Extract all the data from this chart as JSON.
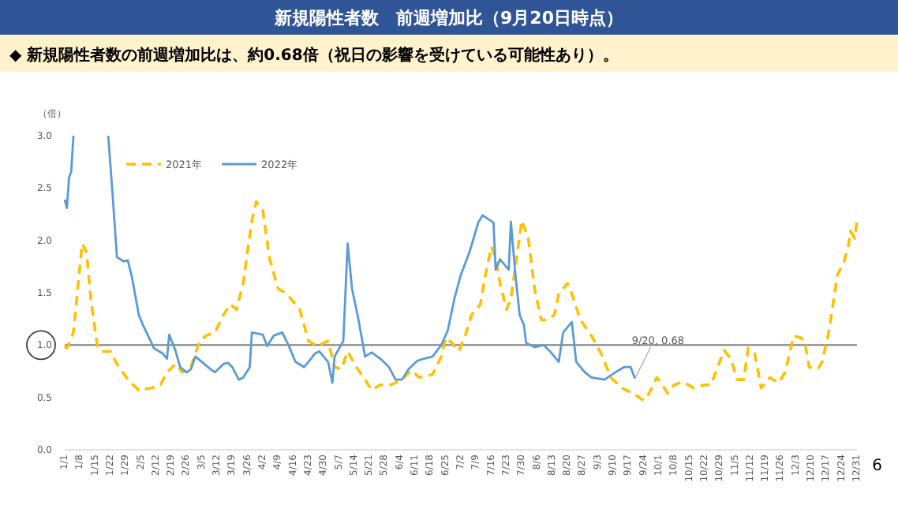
{
  "chart_data": {
    "type": "line",
    "title": "新規陽性者数　前週増加比（9月20日時点）",
    "subtitle": "◆  新規陽性者数の前週増加比は、約0.68倍（祝日の影響を受けている可能性あり）。",
    "ylabel": "（倍）",
    "annotations": [
      {
        "text": "9/20, 0.68",
        "x": "--09-20",
        "y": 0.68
      },
      "6"
    ],
    "legend": "top left",
    "xlim": [
      "--01-01",
      "--12-31"
    ],
    "ylim": [
      0,
      3
    ],
    "yticks": [
      {
        "value": 0,
        "label": "0.0"
      },
      {
        "value": 0.5,
        "label": "0.5"
      },
      {
        "value": 1,
        "label": "1.0"
      },
      {
        "value": 1.5,
        "label": "1.5"
      },
      {
        "value": 2,
        "label": "2.0"
      },
      {
        "value": 2.5,
        "label": "2.5"
      },
      {
        "value": 3,
        "label": "3.0"
      }
    ],
    "xticks": [
      {
        "value": "--01-01",
        "label": "1/1"
      },
      {
        "value": "--01-08",
        "label": "1/8"
      },
      {
        "value": "--01-15",
        "label": "1/15"
      },
      {
        "value": "--01-22",
        "label": "1/22"
      },
      {
        "value": "--01-29",
        "label": "1/29"
      },
      {
        "value": "--02-05",
        "label": "2/5"
      },
      {
        "value": "--02-12",
        "label": "2/12"
      },
      {
        "value": "--02-19",
        "label": "2/19"
      },
      {
        "value": "--02-26",
        "label": "2/26"
      },
      {
        "value": "--03-05",
        "label": "3/5"
      },
      {
        "value": "--03-12",
        "label": "3/12"
      },
      {
        "value": "--03-19",
        "label": "3/19"
      },
      {
        "value": "--03-26",
        "label": "3/26"
      },
      {
        "value": "--04-02",
        "label": "4/2"
      },
      {
        "value": "--04-09",
        "label": "4/9"
      },
      {
        "value": "--04-16",
        "label": "4/16"
      },
      {
        "value": "--04-23",
        "label": "4/23"
      },
      {
        "value": "--04-30",
        "label": "4/30"
      },
      {
        "value": "--05-07",
        "label": "5/7"
      },
      {
        "value": "--05-14",
        "label": "5/14"
      },
      {
        "value": "--05-21",
        "label": "5/21"
      },
      {
        "value": "--05-28",
        "label": "5/28"
      },
      {
        "value": "--06-04",
        "label": "6/4"
      },
      {
        "value": "--06-11",
        "label": "6/11"
      },
      {
        "value": "--06-18",
        "label": "6/18"
      },
      {
        "value": "--06-25",
        "label": "6/25"
      },
      {
        "value": "--07-02",
        "label": "7/2"
      },
      {
        "value": "--07-09",
        "label": "7/9"
      },
      {
        "value": "--07-16",
        "label": "7/16"
      },
      {
        "value": "--07-23",
        "label": "7/23"
      },
      {
        "value": "--07-30",
        "label": "7/30"
      },
      {
        "value": "--08-06",
        "label": "8/6"
      },
      {
        "value": "--08-13",
        "label": "8/13"
      },
      {
        "value": "--08-20",
        "label": "8/20"
      },
      {
        "value": "--08-27",
        "label": "8/27"
      },
      {
        "value": "--09-03",
        "label": "9/3"
      },
      {
        "value": "--09-10",
        "label": "9/10"
      },
      {
        "value": "--09-17",
        "label": "9/17"
      },
      {
        "value": "--09-24",
        "label": "9/24"
      },
      {
        "value": "--10-01",
        "label": "10/1"
      },
      {
        "value": "--10-08",
        "label": "10/8"
      },
      {
        "value": "--10-15",
        "label": "10/15"
      },
      {
        "value": "--10-22",
        "label": "10/22"
      },
      {
        "value": "--10-29",
        "label": "10/29"
      },
      {
        "value": "--11-05",
        "label": "11/5"
      },
      {
        "value": "--11-12",
        "label": "11/12"
      },
      {
        "value": "--11-19",
        "label": "11/19"
      },
      {
        "value": "--11-26",
        "label": "11/26"
      },
      {
        "value": "--12-03",
        "label": "12/3"
      },
      {
        "value": "--12-10",
        "label": "12/10"
      },
      {
        "value": "--12-17",
        "label": "12/17"
      },
      {
        "value": "--12-24",
        "label": "12/24"
      },
      {
        "value": "--12-31",
        "label": "12/31"
      }
    ],
    "ref_lines": [
      {
        "axis": "y",
        "value": 1,
        "color": "#808080"
      }
    ],
    "series": [
      {
        "name": "2021年",
        "color": "#ffc000",
        "line_style": "dashed",
        "x": [
          "--01-01",
          "--01-02",
          "--01-05",
          "--01-07",
          "--01-09",
          "--01-11",
          "--01-13",
          "--01-16",
          "--01-18",
          "--01-22",
          "--01-25",
          "--01-30",
          "--02-04",
          "--02-10",
          "--02-14",
          "--02-17",
          "--02-21",
          "--02-24",
          "--02-28",
          "--03-04",
          "--03-07",
          "--03-11",
          "--03-15",
          "--03-18",
          "--03-21",
          "--03-24",
          "--03-28",
          "--03-30",
          "--04-02",
          "--04-05",
          "--04-09",
          "--04-13",
          "--04-19",
          "--04-23",
          "--04-27",
          "--05-02",
          "--05-05",
          "--05-08",
          "--05-11",
          "--05-15",
          "--05-19",
          "--05-22",
          "--05-26",
          "--05-31",
          "--06-05",
          "--06-09",
          "--06-13",
          "--06-19",
          "--06-23",
          "--06-25",
          "--06-28",
          "--07-01",
          "--07-04",
          "--07-07",
          "--07-11",
          "--07-13",
          "--07-16",
          "--07-18",
          "--07-20",
          "--07-23",
          "--07-25",
          "--07-28",
          "--07-30",
          "--08-02",
          "--08-05",
          "--08-08",
          "--08-11",
          "--08-14",
          "--08-16",
          "--08-20",
          "--08-22",
          "--08-26",
          "--08-31",
          "--09-04",
          "--09-09",
          "--09-14",
          "--09-19",
          "--09-24",
          "--09-26",
          "--09-30",
          "--10-02",
          "--10-05",
          "--10-08",
          "--10-12",
          "--10-17",
          "--10-22",
          "--10-25",
          "--10-28",
          "--10-31",
          "--11-03",
          "--11-06",
          "--11-09",
          "--11-11",
          "--11-14",
          "--11-17",
          "--11-21",
          "--11-25",
          "--11-28",
          "--12-02",
          "--12-05",
          "--12-07",
          "--12-09",
          "--12-13",
          "--12-15",
          "--12-18",
          "--12-20",
          "--12-22",
          "--12-25",
          "--12-27",
          "--12-28",
          "--12-30",
          "--12-31"
        ],
        "values": [
          0.99,
          0.97,
          1.12,
          1.54,
          1.97,
          1.89,
          1.44,
          0.99,
          0.94,
          0.94,
          0.82,
          0.67,
          0.57,
          0.59,
          0.62,
          0.74,
          0.82,
          0.74,
          0.79,
          1.04,
          1.09,
          1.12,
          1.29,
          1.39,
          1.34,
          1.59,
          2.19,
          2.37,
          2.29,
          1.84,
          1.54,
          1.49,
          1.34,
          1.04,
          0.99,
          1.04,
          0.79,
          0.77,
          0.94,
          0.79,
          0.67,
          0.57,
          0.62,
          0.62,
          0.67,
          0.76,
          0.69,
          0.72,
          0.89,
          1.07,
          1.02,
          0.94,
          1.09,
          1.29,
          1.39,
          1.64,
          1.94,
          1.84,
          1.59,
          1.34,
          1.44,
          1.89,
          2.19,
          2.02,
          1.52,
          1.24,
          1.24,
          1.29,
          1.49,
          1.59,
          1.49,
          1.24,
          1.09,
          0.94,
          0.69,
          0.59,
          0.54,
          0.47,
          0.52,
          0.69,
          0.64,
          0.54,
          0.62,
          0.65,
          0.59,
          0.62,
          0.62,
          0.79,
          0.95,
          0.87,
          0.67,
          0.67,
          0.97,
          0.92,
          0.59,
          0.69,
          0.64,
          0.74,
          1.09,
          1.07,
          1.04,
          0.79,
          0.77,
          0.84,
          1.12,
          1.39,
          1.67,
          1.79,
          1.94,
          2.09,
          2.02,
          2.19
        ]
      },
      {
        "name": "2022年",
        "color": "#5b9bd5",
        "line_style": "solid",
        "x": [
          "--01-01",
          "--01-02",
          "--01-03",
          "--01-04",
          "--01-05",
          "--01-21",
          "--01-23",
          "--01-25",
          "--01-28",
          "--01-30",
          "--02-01",
          "--02-04",
          "--02-06",
          "--02-09",
          "--02-11",
          "--02-15",
          "--02-17",
          "--02-18",
          "--02-21",
          "--02-23",
          "--02-26",
          "--02-28",
          "--03-02",
          "--03-05",
          "--03-09",
          "--03-11",
          "--03-15",
          "--03-17",
          "--03-19",
          "--03-22",
          "--03-24",
          "--03-27",
          "--03-28",
          "--04-02",
          "--04-04",
          "--04-07",
          "--04-11",
          "--04-14",
          "--04-17",
          "--04-21",
          "--04-23",
          "--04-26",
          "--04-28",
          "--05-02",
          "--05-04",
          "--05-05",
          "--05-09",
          "--05-11",
          "--05-13",
          "--05-16",
          "--05-19",
          "--05-22",
          "--05-26",
          "--05-30",
          "--06-02",
          "--06-05",
          "--06-08",
          "--06-12",
          "--06-15",
          "--06-19",
          "--06-23",
          "--06-26",
          "--06-29",
          "--07-02",
          "--07-06",
          "--07-10",
          "--07-12",
          "--07-17",
          "--07-18",
          "--07-20",
          "--07-24",
          "--07-25",
          "--07-27",
          "--07-29",
          "--07-31",
          "--08-01",
          "--08-05",
          "--08-09",
          "--08-12",
          "--08-16",
          "--08-18",
          "--08-22",
          "--08-24",
          "--08-28",
          "--08-31",
          "--09-06",
          "--09-11",
          "--09-15",
          "--09-18",
          "--09-20"
        ],
        "values": [
          2.39,
          2.31,
          2.6,
          2.66,
          3.0,
          3.0,
          2.44,
          1.84,
          1.8,
          1.81,
          1.64,
          1.29,
          1.19,
          1.06,
          0.97,
          0.92,
          0.87,
          1.1,
          0.94,
          0.79,
          0.74,
          0.77,
          0.89,
          0.84,
          0.77,
          0.74,
          0.82,
          0.83,
          0.79,
          0.67,
          0.69,
          0.79,
          1.12,
          1.1,
          0.99,
          1.09,
          1.12,
          0.99,
          0.84,
          0.79,
          0.84,
          0.92,
          0.94,
          0.84,
          0.64,
          0.89,
          1.04,
          1.97,
          1.54,
          1.24,
          0.89,
          0.93,
          0.87,
          0.79,
          0.67,
          0.67,
          0.77,
          0.85,
          0.87,
          0.89,
          1.0,
          1.14,
          1.44,
          1.67,
          1.89,
          2.17,
          2.24,
          2.17,
          1.72,
          1.82,
          1.72,
          2.18,
          1.69,
          1.29,
          1.19,
          1.02,
          0.98,
          1.0,
          0.94,
          0.84,
          1.12,
          1.22,
          0.84,
          0.74,
          0.69,
          0.67,
          0.74,
          0.79,
          0.79,
          0.68
        ]
      }
    ]
  }
}
